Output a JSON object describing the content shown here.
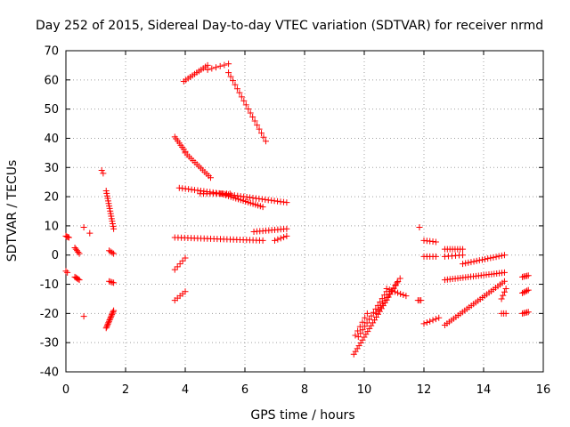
{
  "chart_data": {
    "type": "scatter",
    "title": "Day 252 of 2015, Sidereal Day-to-day VTEC variation (SDTVAR) for receiver nrmd",
    "xlabel": "GPS time / hours",
    "ylabel": "SDTVAR / TECUs",
    "xlim": [
      0,
      16
    ],
    "ylim": [
      -40,
      70
    ],
    "xticks": [
      0,
      2,
      4,
      6,
      8,
      10,
      12,
      14,
      16
    ],
    "yticks": [
      -40,
      -30,
      -20,
      -10,
      0,
      10,
      20,
      30,
      40,
      50,
      60,
      70
    ],
    "grid": true,
    "marker": "+",
    "color": "#ff0000",
    "segments": [
      {
        "x0": 0.0,
        "x1": 0.1,
        "y0": 6.5,
        "y1": 6.0,
        "n": 4
      },
      {
        "x0": 0.0,
        "x1": 0.05,
        "y0": -5.5,
        "y1": -6.0,
        "n": 2
      },
      {
        "x0": 0.3,
        "x1": 0.45,
        "y0": 2.5,
        "y1": 0.5,
        "n": 5
      },
      {
        "x0": 0.3,
        "x1": 0.45,
        "y0": -7.5,
        "y1": -8.5,
        "n": 5
      },
      {
        "x0": 0.6,
        "x1": 0.6,
        "y0": 9.5,
        "y1": 9.5,
        "n": 1
      },
      {
        "x0": 0.8,
        "x1": 0.8,
        "y0": 7.5,
        "y1": 7.5,
        "n": 1
      },
      {
        "x0": 0.6,
        "x1": 0.6,
        "y0": -21.0,
        "y1": -21.0,
        "n": 1
      },
      {
        "x0": 1.2,
        "x1": 1.25,
        "y0": 29.0,
        "y1": 28.0,
        "n": 2
      },
      {
        "x0": 1.35,
        "x1": 1.6,
        "y0": 22.0,
        "y1": 9.0,
        "n": 16
      },
      {
        "x0": 1.45,
        "x1": 1.6,
        "y0": 1.5,
        "y1": 0.5,
        "n": 4
      },
      {
        "x0": 1.45,
        "x1": 1.6,
        "y0": -9.0,
        "y1": -9.5,
        "n": 4
      },
      {
        "x0": 1.35,
        "x1": 1.6,
        "y0": -25.0,
        "y1": -19.0,
        "n": 14
      },
      {
        "x0": 3.65,
        "x1": 4.0,
        "y0": 40.5,
        "y1": 35.5,
        "n": 8
      },
      {
        "x0": 4.0,
        "x1": 4.85,
        "y0": 35.0,
        "y1": 26.5,
        "n": 14
      },
      {
        "x0": 3.8,
        "x1": 7.4,
        "y0": 23.0,
        "y1": 18.0,
        "n": 36
      },
      {
        "x0": 4.5,
        "x1": 5.5,
        "y0": 21.0,
        "y1": 21.0,
        "n": 10
      },
      {
        "x0": 5.2,
        "x1": 6.6,
        "y0": 21.0,
        "y1": 16.5,
        "n": 18
      },
      {
        "x0": 3.65,
        "x1": 6.6,
        "y0": 6.0,
        "y1": 5.0,
        "n": 28
      },
      {
        "x0": 6.3,
        "x1": 7.4,
        "y0": 8.0,
        "y1": 9.0,
        "n": 12
      },
      {
        "x0": 7.0,
        "x1": 7.4,
        "y0": 5.0,
        "y1": 6.5,
        "n": 5
      },
      {
        "x0": 3.65,
        "x1": 4.0,
        "y0": -5.0,
        "y1": -1.0,
        "n": 5
      },
      {
        "x0": 3.65,
        "x1": 4.0,
        "y0": -15.5,
        "y1": -12.5,
        "n": 5
      },
      {
        "x0": 3.95,
        "x1": 4.75,
        "y0": 59.5,
        "y1": 65.0,
        "n": 12
      },
      {
        "x0": 4.75,
        "x1": 5.45,
        "y0": 63.5,
        "y1": 65.5,
        "n": 6
      },
      {
        "x0": 5.45,
        "x1": 6.7,
        "y0": 62.5,
        "y1": 39.0,
        "n": 18
      },
      {
        "x0": 9.65,
        "x1": 11.1,
        "y0": -34.0,
        "y1": -9.5,
        "n": 26
      },
      {
        "x0": 9.8,
        "x1": 10.75,
        "y0": -28.0,
        "y1": -12.5,
        "n": 14
      },
      {
        "x0": 9.7,
        "x1": 10.1,
        "y0": -27.5,
        "y1": -20.0,
        "n": 6
      },
      {
        "x0": 10.4,
        "x1": 11.2,
        "y0": -20.0,
        "y1": -8.0,
        "n": 12
      },
      {
        "x0": 10.75,
        "x1": 11.4,
        "y0": -11.5,
        "y1": -14.0,
        "n": 8
      },
      {
        "x0": 11.8,
        "x1": 11.9,
        "y0": -15.5,
        "y1": -15.5,
        "n": 3
      },
      {
        "x0": 11.85,
        "x1": 11.85,
        "y0": 9.5,
        "y1": 9.5,
        "n": 1
      },
      {
        "x0": 12.0,
        "x1": 12.4,
        "y0": 5.0,
        "y1": 4.5,
        "n": 5
      },
      {
        "x0": 12.0,
        "x1": 12.4,
        "y0": -0.5,
        "y1": -0.5,
        "n": 5
      },
      {
        "x0": 12.0,
        "x1": 12.5,
        "y0": -23.5,
        "y1": -21.5,
        "n": 6
      },
      {
        "x0": 12.7,
        "x1": 13.3,
        "y0": 2.0,
        "y1": 2.0,
        "n": 8
      },
      {
        "x0": 12.7,
        "x1": 13.3,
        "y0": -0.5,
        "y1": 0.0,
        "n": 6
      },
      {
        "x0": 13.3,
        "x1": 14.7,
        "y0": -3.0,
        "y1": 0.0,
        "n": 16
      },
      {
        "x0": 12.7,
        "x1": 14.7,
        "y0": -8.5,
        "y1": -6.0,
        "n": 24
      },
      {
        "x0": 12.7,
        "x1": 14.7,
        "y0": -24.0,
        "y1": -9.0,
        "n": 28
      },
      {
        "x0": 14.6,
        "x1": 14.75,
        "y0": -15.0,
        "y1": -11.5,
        "n": 4
      },
      {
        "x0": 14.6,
        "x1": 14.75,
        "y0": -20.0,
        "y1": -20.0,
        "n": 3
      },
      {
        "x0": 15.3,
        "x1": 15.5,
        "y0": -7.5,
        "y1": -7.0,
        "n": 5
      },
      {
        "x0": 15.3,
        "x1": 15.5,
        "y0": -13.0,
        "y1": -12.0,
        "n": 5
      },
      {
        "x0": 15.3,
        "x1": 15.5,
        "y0": -20.0,
        "y1": -19.5,
        "n": 5
      }
    ]
  }
}
